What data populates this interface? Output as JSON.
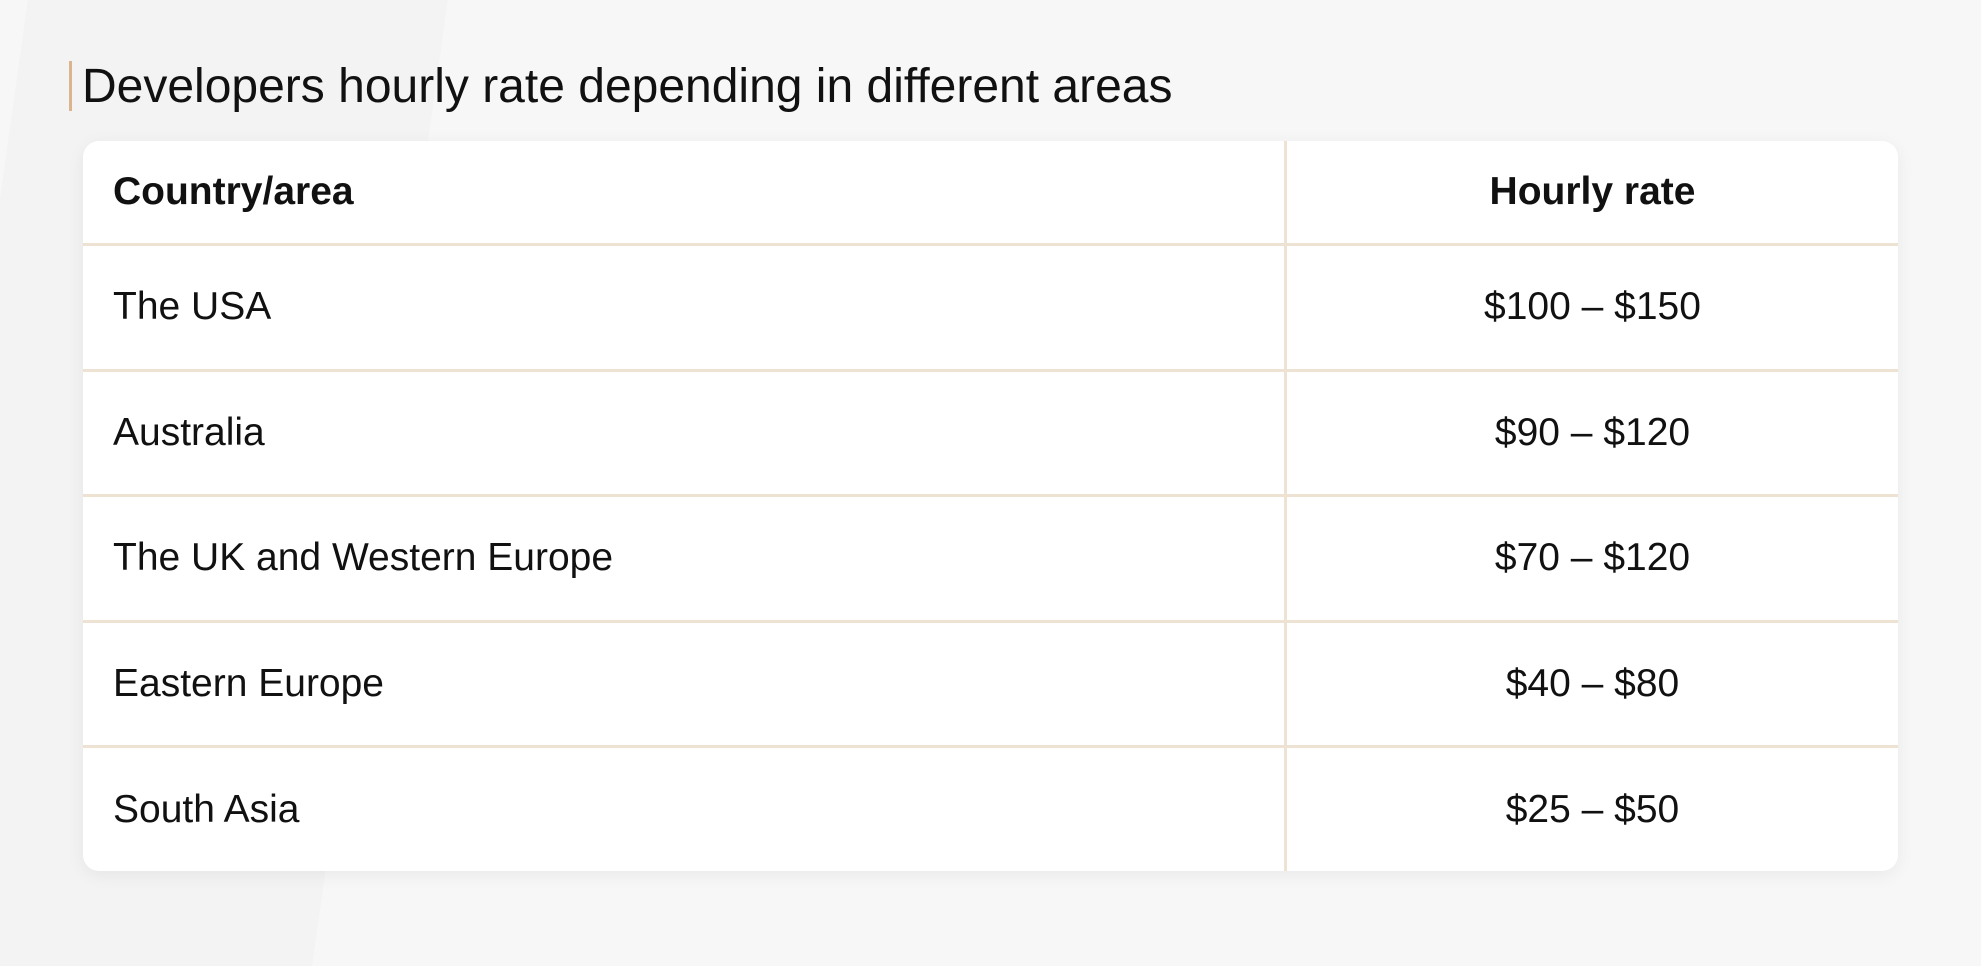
{
  "header": {
    "title": "Developers hourly rate depending in different areas"
  },
  "table": {
    "columns": [
      "Country/area",
      "Hourly rate"
    ],
    "rows": [
      [
        "The USA",
        "$100 – $150"
      ],
      [
        "Australia",
        "$90 – $120"
      ],
      [
        "The UK and Western Europe",
        "$70 – $120"
      ],
      [
        "Eastern Europe",
        "$40 – $80"
      ],
      [
        "South Asia",
        "$25 – $50"
      ]
    ]
  }
}
